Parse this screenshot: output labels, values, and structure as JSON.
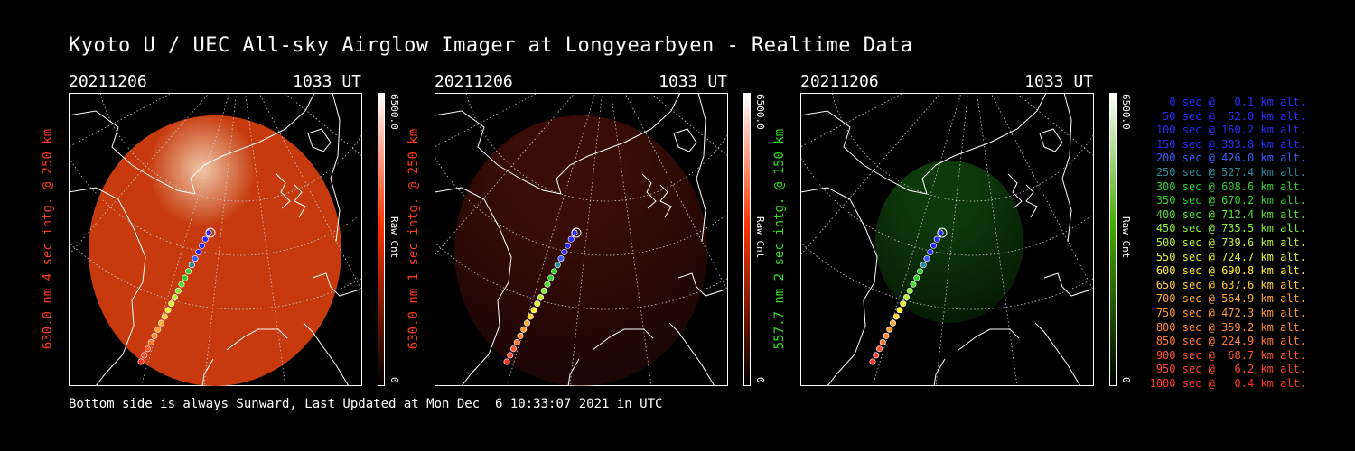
{
  "title": "Kyoto U / UEC All-sky Airglow Imager at Longyearbyen - Realtime Data",
  "footer": "Bottom side is always Sunward, Last Updated at Mon Dec  6 10:33:07 2021 in UTC",
  "panels": [
    {
      "date": "20211206",
      "time": "1033 UT",
      "label": "630.0 nm 4 sec intg. @ 250 km",
      "label_color": "#ff3a1a",
      "colorbar_max": "6500.0",
      "colorbar_unit": "Raw Cnt",
      "colorbar_min": "0",
      "colorbar_color": "#ff3300",
      "glow_color": "#c63a0e",
      "glow_intensity": 1.0
    },
    {
      "date": "20211206",
      "time": "1033 UT",
      "label": "630.0 nm 1 sec intg. @ 250 km",
      "label_color": "#ff3a1a",
      "colorbar_max": "6500.0",
      "colorbar_unit": "Raw Cnt",
      "colorbar_min": "0",
      "colorbar_color": "#ff3300",
      "glow_color": "#3a0c06",
      "glow_intensity": 0.4
    },
    {
      "date": "20211206",
      "time": "1033 UT",
      "label": "557.7 nm 2 sec intg. @ 150 km",
      "label_color": "#33dd22",
      "colorbar_max": "6500.0",
      "colorbar_unit": "Raw Cnt",
      "colorbar_min": "0",
      "colorbar_color": "#44aa00",
      "glow_color": "#0d3a0a",
      "glow_intensity": 0.4
    }
  ],
  "legend": [
    {
      "text": "0 sec @   0.1 km alt.",
      "color": "#2a2aff"
    },
    {
      "text": "50 sec @  52.0 km alt.",
      "color": "#2a2aff"
    },
    {
      "text": "100 sec @ 160.2 km alt.",
      "color": "#2a2aff"
    },
    {
      "text": "150 sec @ 303.8 km alt.",
      "color": "#2a2aff"
    },
    {
      "text": "200 sec @ 426.0 km alt.",
      "color": "#3a5aff"
    },
    {
      "text": "250 sec @ 527.4 km alt.",
      "color": "#2a8aa0"
    },
    {
      "text": "300 sec @ 608.6 km alt.",
      "color": "#33cc33"
    },
    {
      "text": "350 sec @ 670.2 km alt.",
      "color": "#33cc33"
    },
    {
      "text": "400 sec @ 712.4 km alt.",
      "color": "#55dd33"
    },
    {
      "text": "450 sec @ 735.5 km alt.",
      "color": "#88ee33"
    },
    {
      "text": "500 sec @ 739.6 km alt.",
      "color": "#bbee33"
    },
    {
      "text": "550 sec @ 724.7 km alt.",
      "color": "#ddee33"
    },
    {
      "text": "600 sec @ 690.8 km alt.",
      "color": "#ffee33"
    },
    {
      "text": "650 sec @ 637.6 km alt.",
      "color": "#ffcc33"
    },
    {
      "text": "700 sec @ 564.9 km alt.",
      "color": "#ffaa33"
    },
    {
      "text": "750 sec @ 472.3 km alt.",
      "color": "#ff9933"
    },
    {
      "text": "800 sec @ 359.2 km alt.",
      "color": "#ff8833"
    },
    {
      "text": "850 sec @ 224.9 km alt.",
      "color": "#ff7733"
    },
    {
      "text": "900 sec @  68.7 km alt.",
      "color": "#ff5533"
    },
    {
      "text": "950 sec @   6.2 km alt.",
      "color": "#ff4433"
    },
    {
      "text": "1000 sec @   0.4 km alt.",
      "color": "#ff3322"
    }
  ]
}
